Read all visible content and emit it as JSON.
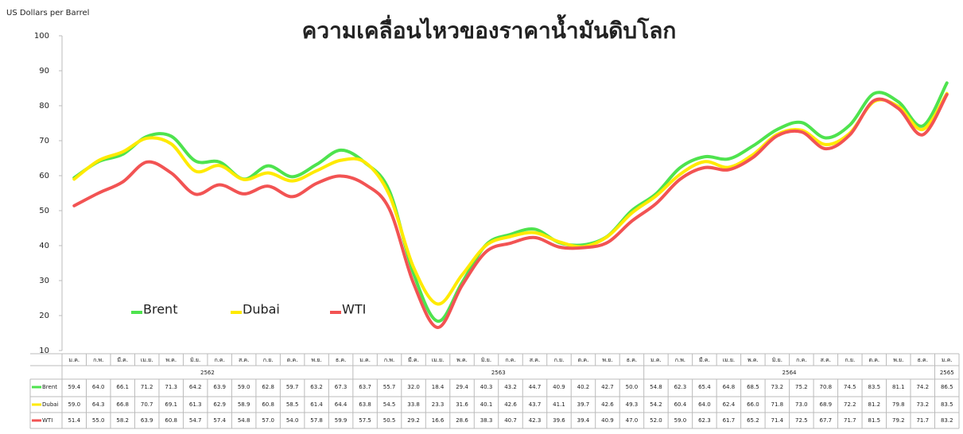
{
  "chart_data": {
    "type": "line",
    "title": "ความเคลื่อนไหวของราคาน้ำมันดิบโลก",
    "y_label": "US Dollars per Barrel",
    "periods": [
      {
        "label": "2562",
        "months": [
          "ม.ค.",
          "ก.พ.",
          "มี.ค.",
          "เม.ย.",
          "พ.ค.",
          "มิ.ย.",
          "ก.ค.",
          "ส.ค.",
          "ก.ย.",
          "ต.ค.",
          "พ.ย.",
          "ธ.ค."
        ]
      },
      {
        "label": "2563",
        "months": [
          "ม.ค.",
          "ก.พ.",
          "มี.ค.",
          "เม.ย.",
          "พ.ค.",
          "มิ.ย.",
          "ก.ค.",
          "ส.ค.",
          "ก.ย.",
          "ต.ค.",
          "พ.ย.",
          "ธ.ค."
        ]
      },
      {
        "label": "2564",
        "months": [
          "ม.ค.",
          "ก.พ.",
          "มี.ค.",
          "เม.ย.",
          "พ.ค.",
          "มิ.ย.",
          "ก.ค.",
          "ส.ค.",
          "ก.ย.",
          "ต.ค.",
          "พ.ย.",
          "ธ.ค."
        ]
      },
      {
        "label": "2565",
        "months": [
          "ม.ค."
        ]
      }
    ],
    "series": [
      {
        "name": "Brent",
        "color": "#4ee34e",
        "values": [
          59.4,
          64.0,
          66.1,
          71.2,
          71.3,
          64.2,
          63.9,
          59.0,
          62.8,
          59.7,
          63.2,
          67.3,
          63.7,
          55.7,
          32.0,
          18.4,
          29.4,
          40.3,
          43.2,
          44.7,
          40.9,
          40.2,
          42.7,
          50.0,
          54.8,
          62.3,
          65.4,
          64.8,
          68.5,
          73.2,
          75.2,
          70.8,
          74.5,
          83.5,
          81.1,
          74.2,
          86.5
        ],
        "value_labels": [
          "59.4",
          "64.0",
          "66.1",
          "71.2",
          "71.3",
          "64.2",
          "63.9",
          "59.0",
          "62.8",
          "59.7",
          "63.2",
          "67.3",
          "63.7",
          "55.7",
          "32.0",
          "18.4",
          "29.4",
          "40.3",
          "43.2",
          "44.7",
          "40.9",
          "40.2",
          "42.7",
          "50.0",
          "54.8",
          "62.3",
          "65.4",
          "64.8",
          "68.5",
          "73.2",
          "75.2",
          "70.8",
          "74.5",
          "83.5",
          "81.1",
          "74.2",
          "86.5"
        ]
      },
      {
        "name": "Dubai",
        "color": "#ffea00",
        "values": [
          59.0,
          64.3,
          66.8,
          70.7,
          69.1,
          61.3,
          62.9,
          58.9,
          60.8,
          58.5,
          61.4,
          64.4,
          63.8,
          54.5,
          33.8,
          23.3,
          31.6,
          40.1,
          42.6,
          43.7,
          41.1,
          39.7,
          42.6,
          49.3,
          54.2,
          60.4,
          64.0,
          62.4,
          66.0,
          71.8,
          73.0,
          68.9,
          72.2,
          81.2,
          79.8,
          73.2,
          83.5
        ],
        "value_labels": [
          "59.0",
          "64.3",
          "66.8",
          "70.7",
          "69.1",
          "61.3",
          "62.9",
          "58.9",
          "60.8",
          "58.5",
          "61.4",
          "64.4",
          "63.8",
          "54.5",
          "33.8",
          "23.3",
          "31.6",
          "40.1",
          "42.6",
          "43.7",
          "41.1",
          "39.7",
          "42.6",
          "49.3",
          "54.2",
          "60.4",
          "64.0",
          "62.4",
          "66.0",
          "71.8",
          "73.0",
          "68.9",
          "72.2",
          "81.2",
          "79.8",
          "73.2",
          "83.5"
        ]
      },
      {
        "name": "WTI",
        "color": "#f25353",
        "values": [
          51.4,
          55.0,
          58.2,
          63.9,
          60.8,
          54.7,
          57.4,
          54.8,
          57.0,
          54.0,
          57.8,
          59.9,
          57.5,
          50.5,
          29.2,
          16.6,
          28.6,
          38.3,
          40.7,
          42.3,
          39.6,
          39.4,
          40.9,
          47.0,
          52.0,
          59.0,
          62.3,
          61.7,
          65.2,
          71.4,
          72.5,
          67.7,
          71.7,
          81.5,
          79.2,
          71.7,
          83.2
        ],
        "value_labels": [
          "51.4",
          "55.0",
          "58.2",
          "63.9",
          "60.8",
          "54.7",
          "57.4",
          "54.8",
          "57.0",
          "54.0",
          "57.8",
          "59.9",
          "57.5",
          "50.5",
          "29.2",
          "16.6",
          "28.6",
          "38.3",
          "40.7",
          "42.3",
          "39.6",
          "39.4",
          "40.9",
          "47.0",
          "52.0",
          "59.0",
          "62.3",
          "61.7",
          "65.2",
          "71.4",
          "72.5",
          "67.7",
          "71.7",
          "81.5",
          "79.2",
          "71.7",
          "83.2"
        ]
      }
    ],
    "ylim": [
      10,
      100
    ],
    "yticks": [
      10,
      20,
      30,
      40,
      50,
      60,
      70,
      80,
      90,
      100
    ],
    "grid": false
  }
}
